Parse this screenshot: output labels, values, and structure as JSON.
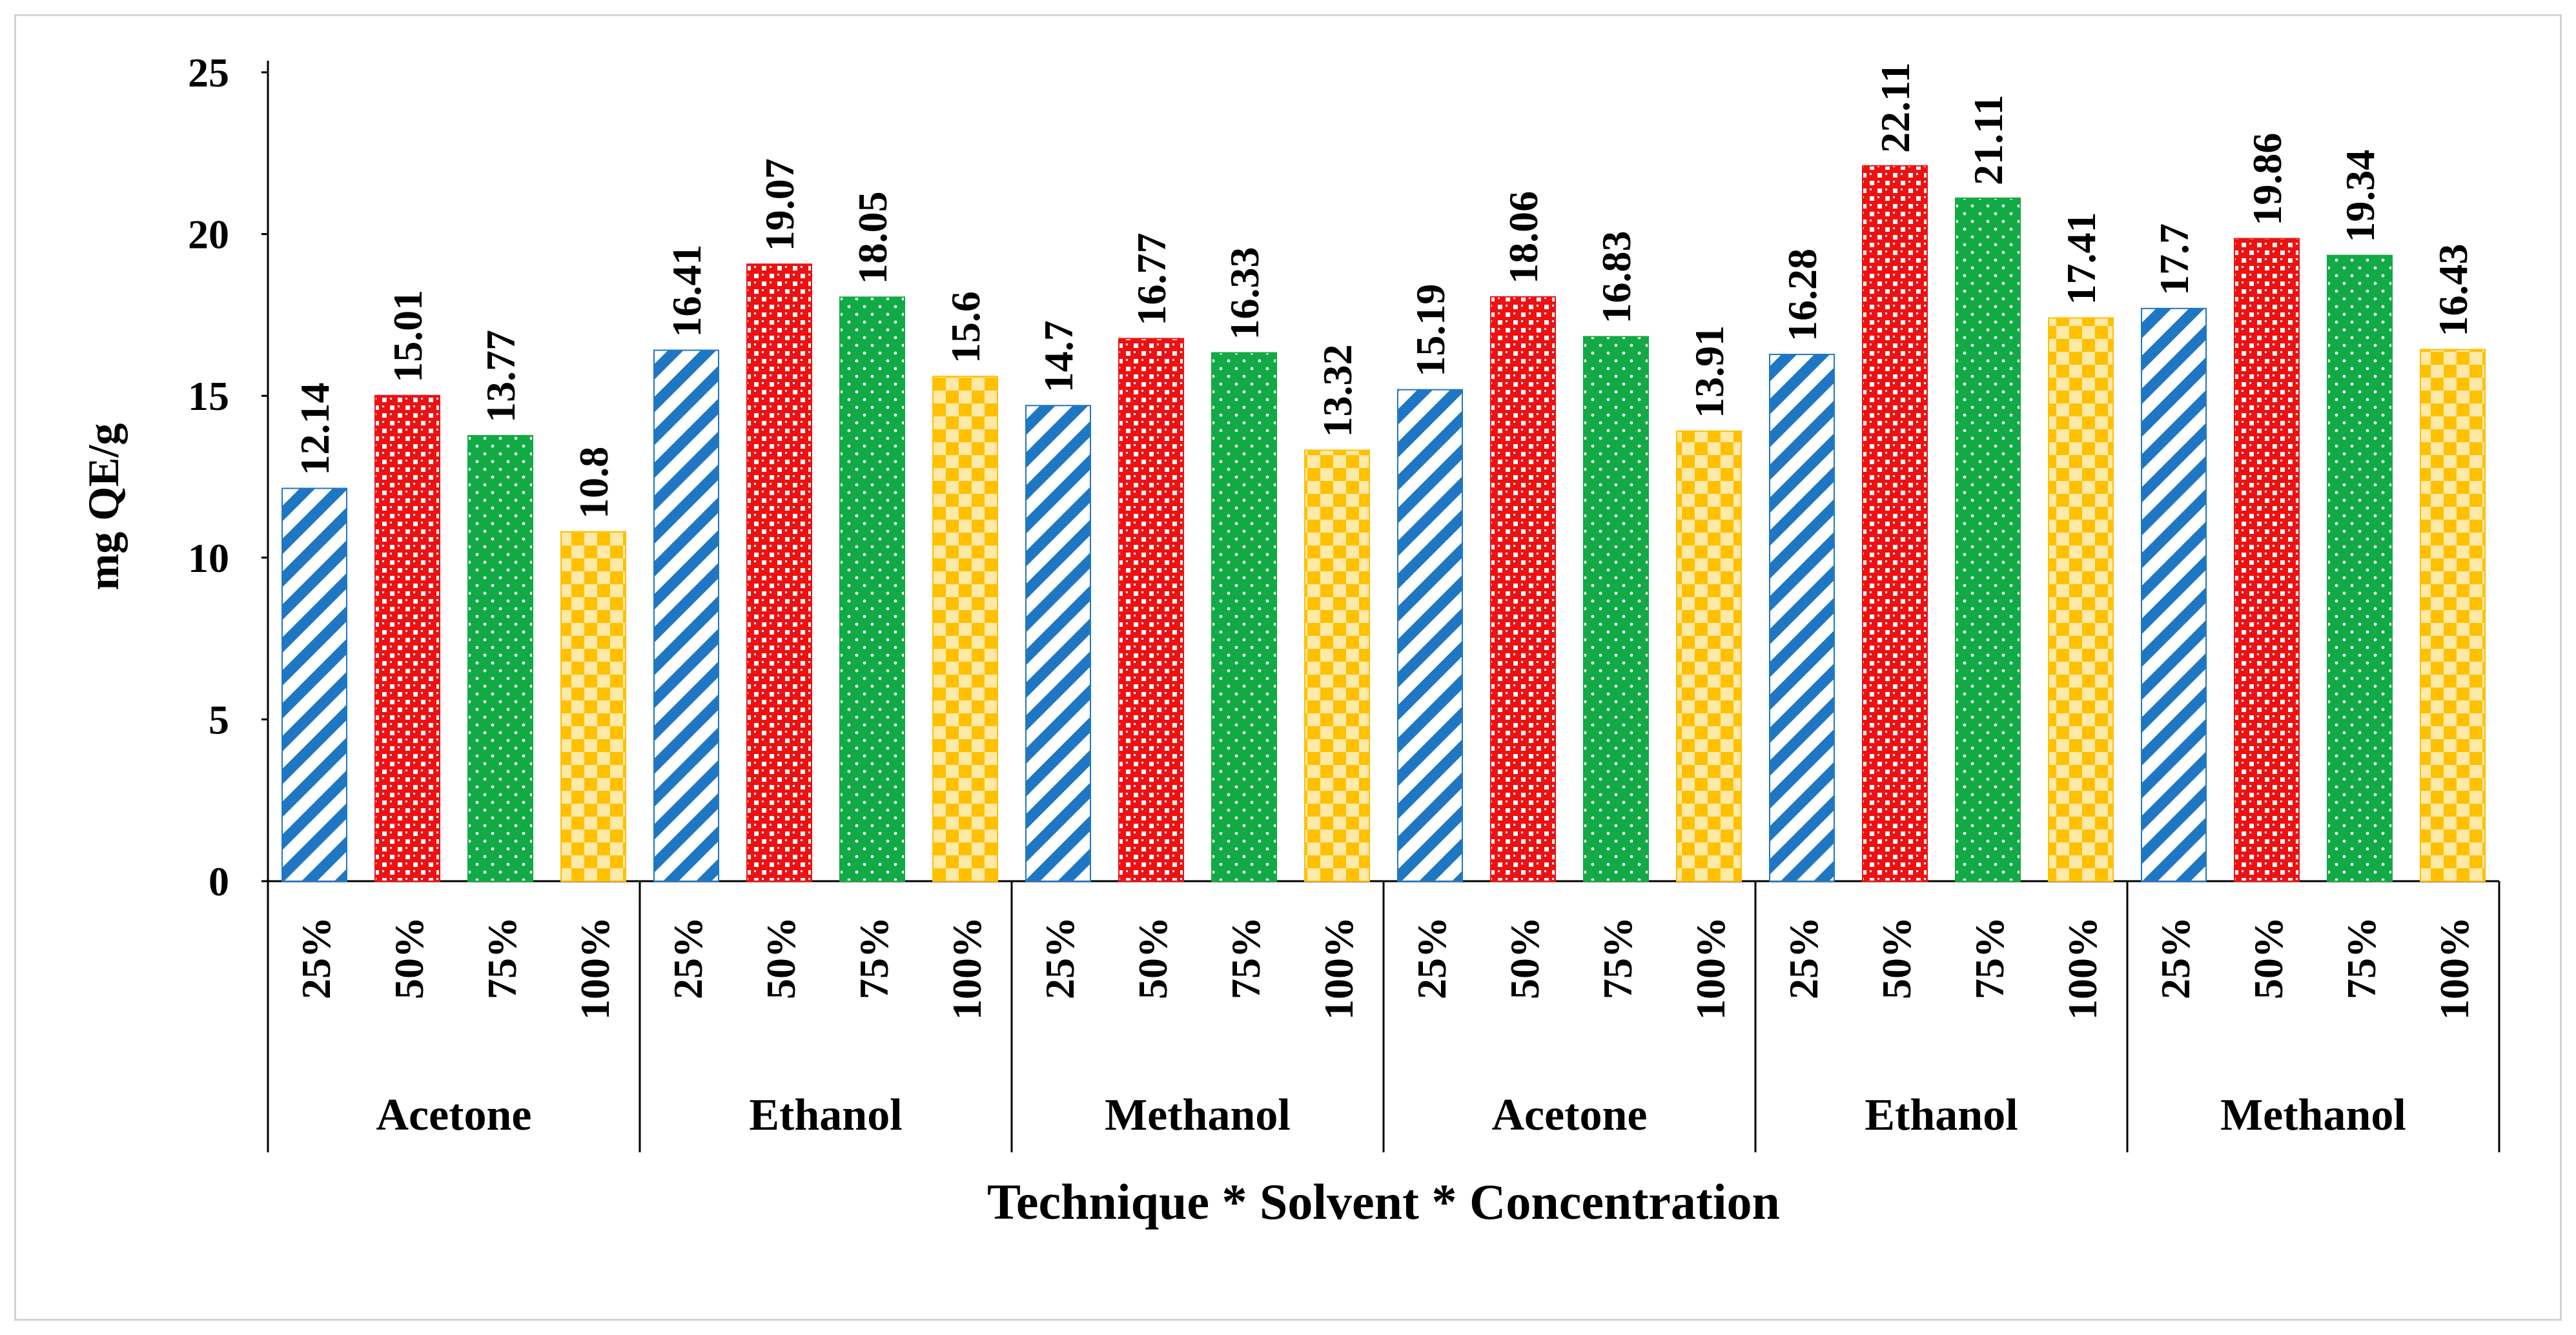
{
  "chart_data": {
    "type": "bar",
    "title": "",
    "ylabel": "mg QE/g",
    "xlabel": "Technique * Solvent * Concentration",
    "ylim": [
      0,
      25
    ],
    "yticks": [
      "0",
      "5",
      "10",
      "15",
      "20",
      "25"
    ],
    "grid": false,
    "legend": "none",
    "groups": [
      {
        "label": "Acetone",
        "categories": [
          "25%",
          "50%",
          "75%",
          "100%"
        ],
        "values": [
          12.14,
          15.01,
          13.77,
          10.8
        ],
        "labels": [
          "12.14",
          "15.01",
          "13.77",
          "10.8"
        ]
      },
      {
        "label": "Ethanol",
        "categories": [
          "25%",
          "50%",
          "75%",
          "100%"
        ],
        "values": [
          16.41,
          19.07,
          18.05,
          15.6
        ],
        "labels": [
          "16.41",
          "19.07",
          "18.05",
          "15.6"
        ]
      },
      {
        "label": "Methanol",
        "categories": [
          "25%",
          "50%",
          "75%",
          "100%"
        ],
        "values": [
          14.7,
          16.77,
          16.33,
          13.32
        ],
        "labels": [
          "14.7",
          "16.77",
          "16.33",
          "13.32"
        ]
      },
      {
        "label": "Acetone",
        "categories": [
          "25%",
          "50%",
          "75%",
          "100%"
        ],
        "values": [
          15.19,
          18.06,
          16.83,
          13.91
        ],
        "labels": [
          "15.19",
          "18.06",
          "16.83",
          "13.91"
        ]
      },
      {
        "label": "Ethanol",
        "categories": [
          "25%",
          "50%",
          "75%",
          "100%"
        ],
        "values": [
          16.28,
          22.11,
          21.11,
          17.41
        ],
        "labels": [
          "16.28",
          "22.11",
          "21.11",
          "17.41"
        ]
      },
      {
        "label": "Methanol",
        "categories": [
          "25%",
          "50%",
          "75%",
          "100%"
        ],
        "values": [
          17.7,
          19.86,
          19.34,
          16.43
        ],
        "labels": [
          "17.7",
          "19.86",
          "19.34",
          "16.43"
        ]
      }
    ],
    "concentration_styles": {
      "25%": {
        "pattern": "diagonal-stripes",
        "color": "#1f77c4"
      },
      "50%": {
        "pattern": "checkered-grid",
        "color": "#ee1111"
      },
      "75%": {
        "pattern": "dotted",
        "color": "#11aa44"
      },
      "100%": {
        "pattern": "checkerboard",
        "color": "#ffc000"
      }
    }
  }
}
